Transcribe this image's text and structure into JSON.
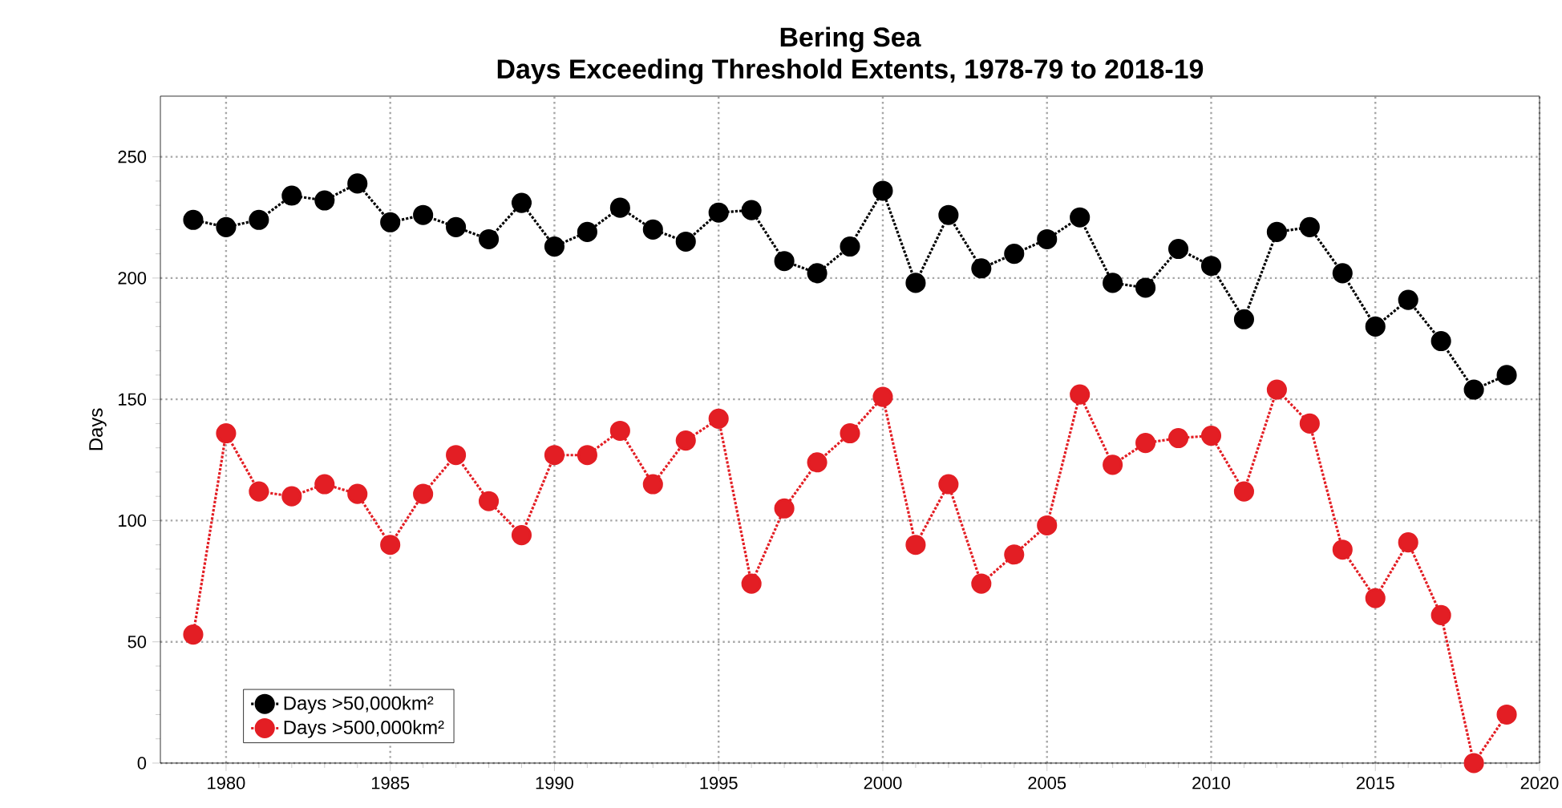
{
  "chart_data": {
    "type": "line",
    "title": "Bering Sea\nDays Exceeding Threshold Extents, 1978-79 to 2018-19",
    "ylabel": "Days",
    "x": [
      1979,
      1980,
      1981,
      1982,
      1983,
      1984,
      1985,
      1986,
      1987,
      1988,
      1989,
      1990,
      1991,
      1992,
      1993,
      1994,
      1995,
      1996,
      1997,
      1998,
      1999,
      2000,
      2001,
      2002,
      2003,
      2004,
      2005,
      2006,
      2007,
      2008,
      2009,
      2010,
      2011,
      2012,
      2013,
      2014,
      2015,
      2016,
      2017,
      2018,
      2019
    ],
    "series": [
      {
        "name": "Days >50,000km²",
        "color": "#000000",
        "values": [
          224,
          221,
          224,
          234,
          232,
          239,
          223,
          226,
          221,
          216,
          231,
          213,
          219,
          229,
          220,
          215,
          227,
          228,
          207,
          202,
          213,
          236,
          198,
          226,
          204,
          210,
          216,
          225,
          198,
          196,
          212,
          205,
          183,
          219,
          221,
          202,
          180,
          191,
          174,
          154,
          160
        ]
      },
      {
        "name": "Days >500,000km²",
        "color": "#e31e24",
        "values": [
          53,
          136,
          112,
          110,
          115,
          111,
          90,
          111,
          127,
          108,
          94,
          127,
          127,
          137,
          115,
          133,
          142,
          74,
          105,
          124,
          136,
          151,
          90,
          115,
          74,
          86,
          98,
          152,
          123,
          132,
          134,
          135,
          112,
          154,
          140,
          88,
          68,
          91,
          61,
          0,
          20
        ]
      }
    ],
    "xlim": [
      1978,
      2020
    ],
    "xticks": [
      1980,
      1985,
      1990,
      1995,
      2000,
      2005,
      2010,
      2015,
      2020
    ],
    "ylim": [
      0,
      275
    ],
    "yticks": [
      0,
      50,
      100,
      150,
      200,
      250
    ],
    "grid": true,
    "legend": "bottom left",
    "marker": "circle",
    "line_style": "dotted"
  }
}
